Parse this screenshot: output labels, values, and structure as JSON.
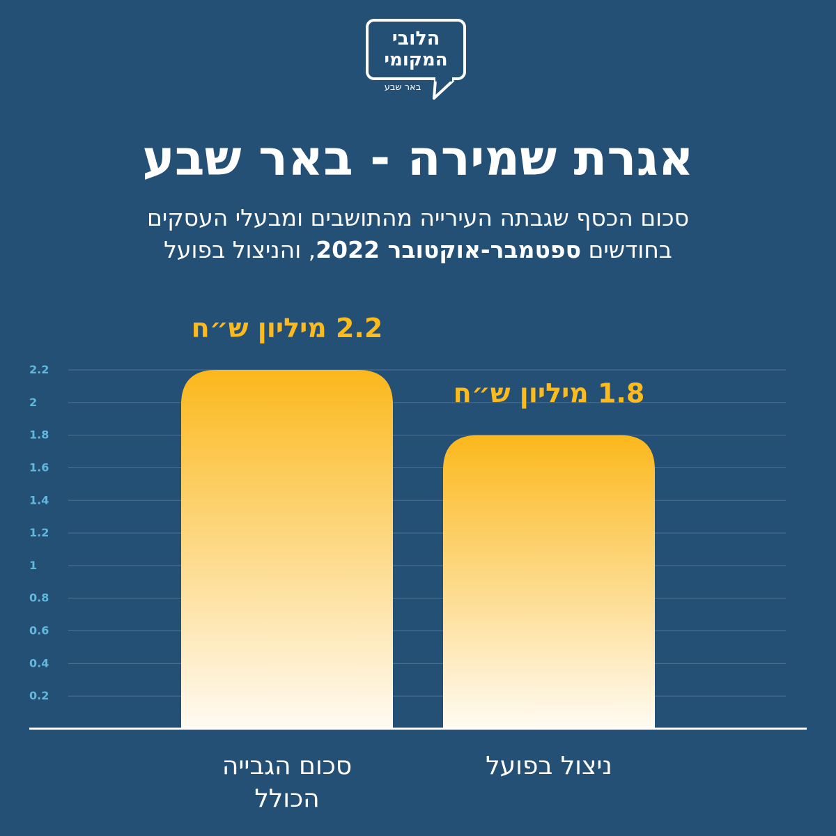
{
  "logo": {
    "line1": "הלובי",
    "line2": "המקומי",
    "city": "באר שבע"
  },
  "title": "אגרת שמירה - באר שבע",
  "subtitle": {
    "line1": "סכום הכסף שגבתה העירייה מהתושבים ומבעלי העסקים",
    "line2_pre": "בחודשים",
    "line2_bold": "ספטמבר-אוקטובר 2022",
    "line2_post": ", והניצול בפועל"
  },
  "colors": {
    "background": "#255076",
    "bar_top": "#fbb81c",
    "bar_bottom": "#fffbf3",
    "value_label": "#fbba1e",
    "tick_label": "#5fb8dd",
    "gridline": "#4f7396"
  },
  "chart_data": {
    "type": "bar",
    "categories": [
      [
        "סכום הגבייה",
        "הכולל"
      ],
      [
        "ניצול בפועל"
      ]
    ],
    "values": [
      2.2,
      1.8
    ],
    "value_labels": [
      "2.2 מיליון ש״ח",
      "1.8 מיליון ש״ח"
    ],
    "yticks": [
      "0.2",
      "0.4",
      "0.6",
      "0.8",
      "1",
      "1.2",
      "1.4",
      "1.6",
      "1.8",
      "2",
      "2.2"
    ],
    "ylim": [
      0,
      2.2
    ],
    "grid": true,
    "legend": "none"
  }
}
